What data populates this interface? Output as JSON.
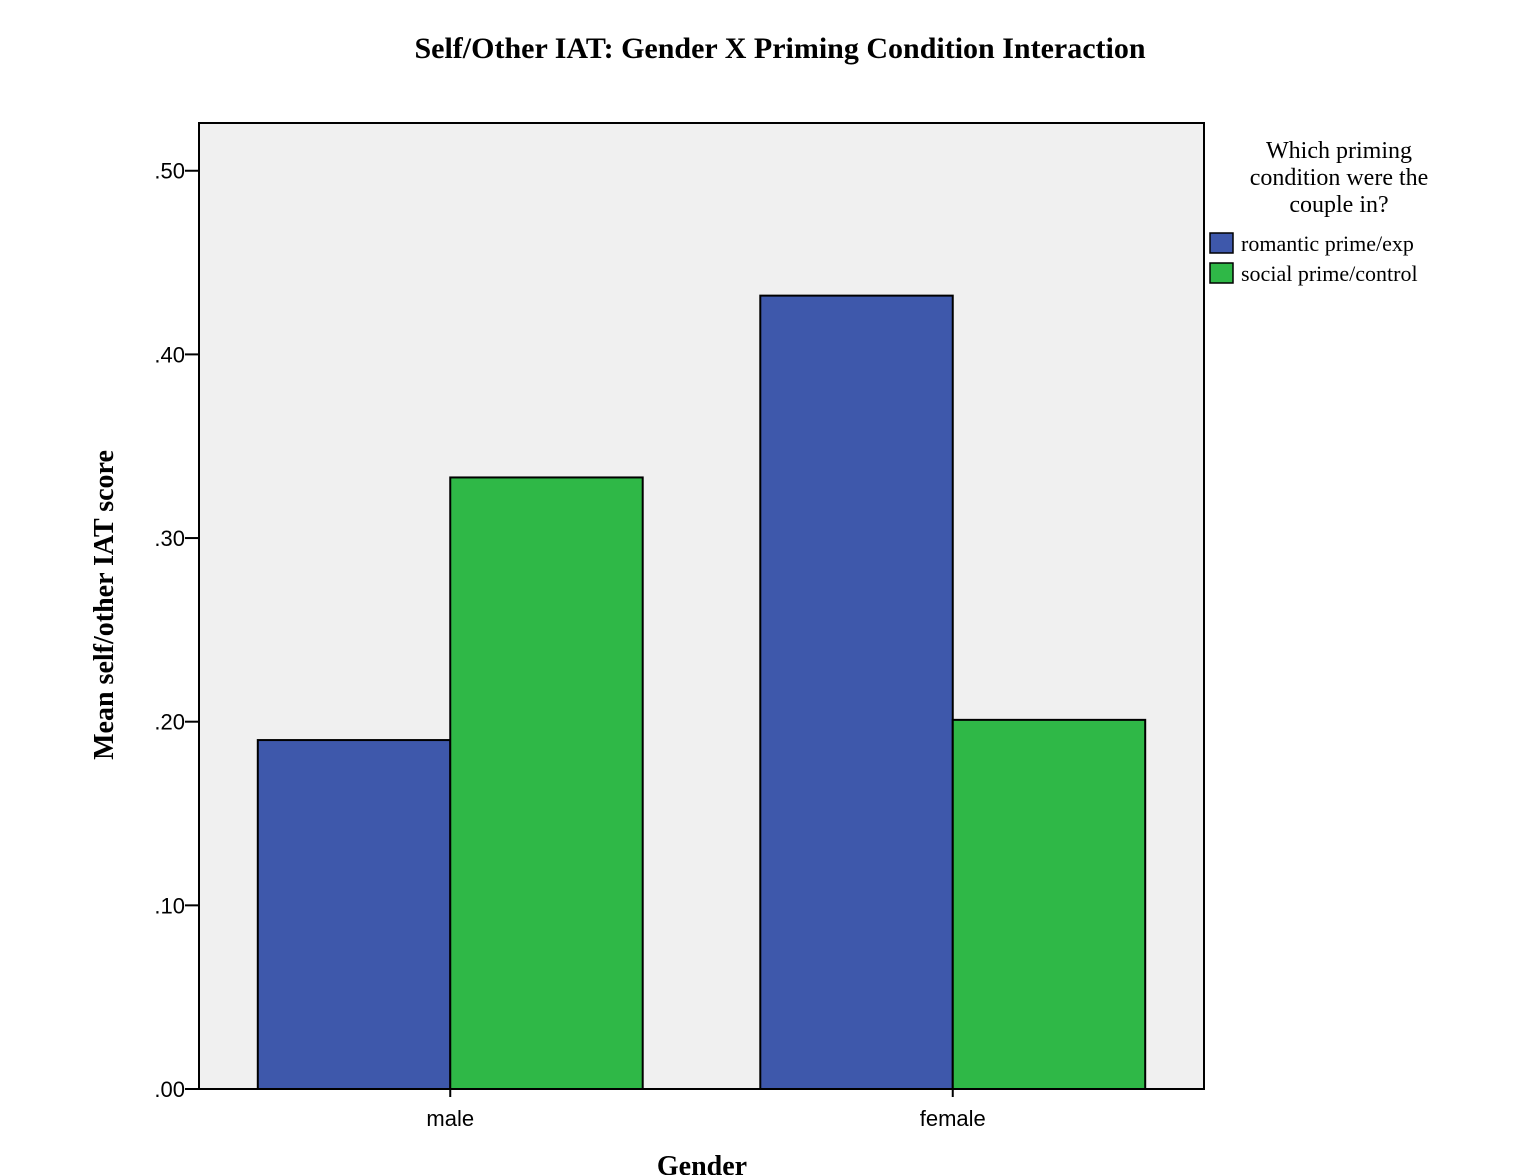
{
  "chart_data": {
    "type": "bar",
    "title": "Self/Other IAT: Gender X Priming Condition Interaction",
    "xlabel": "Gender",
    "ylabel": "Mean self/other IAT score",
    "categories": [
      "male",
      "female"
    ],
    "series": [
      {
        "name": "romantic prime/exp",
        "color": "#3e58ab",
        "values": [
          0.19,
          0.432
        ]
      },
      {
        "name": "social prime/control",
        "color": "#2fb847",
        "values": [
          0.333,
          0.201
        ]
      }
    ],
    "ylim": [
      0,
      0.526
    ],
    "yticks": [
      0,
      0.1,
      0.2,
      0.3,
      0.4,
      0.5
    ],
    "ytick_labels": [
      ".00",
      ".10",
      ".20",
      ".30",
      ".40",
      ".50"
    ],
    "legend": {
      "title_lines": [
        "Which priming",
        "condition were the",
        "couple in?"
      ],
      "placement": "right"
    },
    "plot_background": "#f0f0f0",
    "grid": false
  }
}
